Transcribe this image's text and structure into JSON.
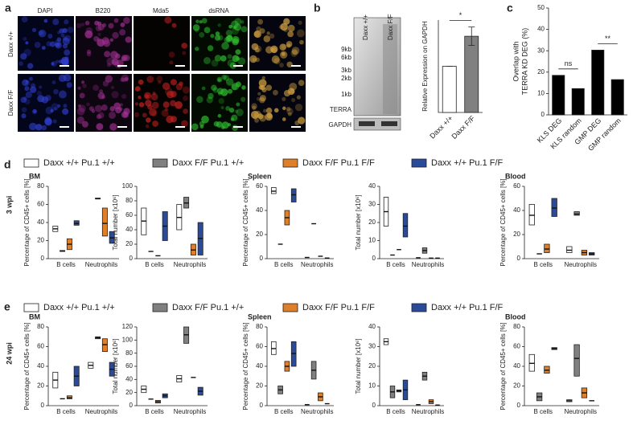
{
  "figure": {
    "panel_labels": [
      "a",
      "b",
      "c",
      "d",
      "e"
    ],
    "row_labels": [
      "3 wpi",
      "24 wpi"
    ]
  },
  "panel_a": {
    "columns": [
      "DAPI",
      "B220",
      "Mda5",
      "dsRNA"
    ],
    "rows": [
      "Daxx +/+",
      "Daxx F/F"
    ]
  },
  "blot": {
    "lanes": [
      "Daxx +/+",
      "Daxx F/F"
    ],
    "markers": [
      "9kb",
      "6kb",
      "3kb",
      "2kb",
      "1kb"
    ],
    "bands": [
      "TERRA",
      "GAPDH"
    ]
  },
  "chart_data": [
    {
      "type": "bar",
      "ylabel": "Relative Expression on GAPDH",
      "categories": [
        "Daxx +/+",
        "Daxx F/F"
      ],
      "values": [
        1.0,
        1.65
      ],
      "errors": [
        0.0,
        0.2
      ],
      "colors": [
        "#ffffff",
        "#808080"
      ],
      "ylim": [
        0,
        2
      ],
      "annotations": [
        {
          "label": "*",
          "categories": [
            "Daxx +/+",
            "Daxx F/F"
          ]
        }
      ]
    },
    {
      "type": "bar",
      "ylabel": [
        "Overlap with",
        "TERRA KD DEG (%)"
      ],
      "categories": [
        "KLS DEG",
        "KLS random",
        "GMP DEG",
        "GMP random"
      ],
      "values": [
        18.5,
        12.3,
        30.3,
        16.5
      ],
      "colors": [
        "#000000",
        "#000000",
        "#000000",
        "#000000"
      ],
      "ylim": [
        0,
        50
      ],
      "yticks": [
        0,
        10,
        20,
        30,
        40,
        50
      ],
      "annotations": [
        {
          "label": "ns",
          "categories": [
            "KLS DEG",
            "KLS random"
          ]
        },
        {
          "label": "**",
          "categories": [
            "GMP DEG",
            "GMP random"
          ]
        }
      ]
    },
    {
      "type": "floating_bar",
      "title": "BM",
      "ylabel": "Percentage of CD45+ cells [%]",
      "categories": [
        "B cells",
        "Neutrophils"
      ],
      "ylim": [
        0,
        80
      ],
      "yticks": [
        0,
        20,
        40,
        60,
        80
      ],
      "series": [
        {
          "name": "Daxx +/+ Pu.1 +/+",
          "color": "#ffffff",
          "min": [
            30,
            null
          ],
          "max": [
            36,
            null
          ],
          "mean": [
            33,
            null
          ]
        },
        {
          "name": "Daxx F/F Pu.1 +/+",
          "color": "#808080",
          "min": [
            8,
            66
          ],
          "max": [
            9,
            67
          ],
          "mean": [
            8.5,
            66.5
          ]
        },
        {
          "name": "Daxx F/F Pu.1 F/F",
          "color": "#e07f2a",
          "min": [
            10,
            25
          ],
          "max": [
            22,
            56
          ],
          "mean": [
            16,
            39
          ]
        },
        {
          "name": "Daxx +/+ Pu.1 F/F",
          "color": "#2a4a9a",
          "min": [
            37,
            17
          ],
          "max": [
            42,
            30
          ],
          "mean": [
            39,
            23
          ]
        }
      ]
    },
    {
      "type": "floating_bar",
      "ylabel": "Total number [x10⁶]",
      "categories": [
        "B cells",
        "Neutrophils"
      ],
      "ylim": [
        0,
        100
      ],
      "yticks": [
        0,
        20,
        40,
        60,
        80,
        100
      ],
      "series": [
        {
          "color": "#ffffff",
          "min": [
            33,
            40
          ],
          "max": [
            70,
            75
          ],
          "mean": [
            52,
            57
          ]
        },
        {
          "color": "#808080",
          "min": [
            10,
            70
          ],
          "max": [
            10,
            85
          ],
          "mean": [
            10,
            77
          ]
        },
        {
          "color": "#e07f2a",
          "min": [
            4,
            5
          ],
          "max": [
            4,
            20
          ],
          "mean": [
            4,
            12
          ]
        },
        {
          "color": "#2a4a9a",
          "min": [
            25,
            5
          ],
          "max": [
            65,
            50
          ],
          "mean": [
            45,
            28
          ]
        }
      ]
    },
    {
      "type": "floating_bar",
      "title": "Spleen",
      "ylabel": "Percentage of CD45+ cells [%]",
      "categories": [
        "B cells",
        "Neutrophils"
      ],
      "ylim": [
        0,
        60
      ],
      "yticks": [
        0,
        20,
        40,
        60
      ],
      "series": [
        {
          "color": "#ffffff",
          "min": [
            54,
            1
          ],
          "max": [
            59,
            1
          ],
          "mean": [
            56,
            1
          ]
        },
        {
          "color": "#808080",
          "min": [
            12,
            29
          ],
          "max": [
            12,
            29
          ],
          "mean": [
            12,
            29
          ]
        },
        {
          "color": "#e07f2a",
          "min": [
            28,
            2
          ],
          "max": [
            40,
            2
          ],
          "mean": [
            34,
            2
          ]
        },
        {
          "color": "#2a4a9a",
          "min": [
            47,
            0.5
          ],
          "max": [
            58,
            0.5
          ],
          "mean": [
            53,
            0.5
          ]
        }
      ]
    },
    {
      "type": "floating_bar",
      "ylabel": "Total number [x10⁶]",
      "categories": [
        "B cells",
        "Neutrophils"
      ],
      "ylim": [
        0,
        40
      ],
      "yticks": [
        0,
        10,
        20,
        30,
        40
      ],
      "series": [
        {
          "color": "#ffffff",
          "min": [
            18,
            0.5
          ],
          "max": [
            34,
            0.5
          ],
          "mean": [
            26,
            0.5
          ]
        },
        {
          "color": "#808080",
          "min": [
            2,
            3
          ],
          "max": [
            2,
            6
          ],
          "mean": [
            2,
            4.5
          ]
        },
        {
          "color": "#e07f2a",
          "min": [
            5,
            0.3
          ],
          "max": [
            5,
            0.3
          ],
          "mean": [
            5,
            0.3
          ]
        },
        {
          "color": "#2a4a9a",
          "min": [
            12,
            0.3
          ],
          "max": [
            25,
            0.3
          ],
          "mean": [
            18,
            0.3
          ]
        }
      ]
    },
    {
      "type": "floating_bar",
      "title": "Blood",
      "ylabel": "Percentage of CD45+ cells [%]",
      "categories": [
        "B cells",
        "Neutrophils"
      ],
      "ylim": [
        0,
        60
      ],
      "yticks": [
        0,
        20,
        40,
        60
      ],
      "series": [
        {
          "color": "#ffffff",
          "min": [
            28,
            5
          ],
          "max": [
            45,
            10
          ],
          "mean": [
            36,
            7
          ]
        },
        {
          "color": "#808080",
          "min": [
            4,
            36
          ],
          "max": [
            4,
            39
          ],
          "mean": [
            4,
            37
          ]
        },
        {
          "color": "#e07f2a",
          "min": [
            5,
            3
          ],
          "max": [
            12,
            7
          ],
          "mean": [
            8,
            5
          ]
        },
        {
          "color": "#2a4a9a",
          "min": [
            35,
            3
          ],
          "max": [
            50,
            5
          ],
          "mean": [
            42,
            4
          ]
        }
      ]
    },
    {
      "type": "floating_bar",
      "title": "BM",
      "ylabel": "Percentage of CD45+ cells [%]",
      "categories": [
        "B cells",
        "Neutrophils"
      ],
      "ylim": [
        0,
        80
      ],
      "yticks": [
        0,
        20,
        40,
        60,
        80
      ],
      "series": [
        {
          "name": "Daxx +/+ Pu.1 +/+",
          "color": "#ffffff",
          "min": [
            18,
            38
          ],
          "max": [
            34,
            44
          ],
          "mean": [
            26,
            41
          ]
        },
        {
          "name": "Daxx F/F Pu.1 +/+",
          "color": "#808080",
          "min": [
            7,
            68
          ],
          "max": [
            7,
            70
          ],
          "mean": [
            7,
            69
          ]
        },
        {
          "name": "Daxx F/F Pu.1 F/F",
          "color": "#e07f2a",
          "min": [
            7,
            55
          ],
          "max": [
            10,
            68
          ],
          "mean": [
            8,
            62
          ]
        },
        {
          "name": "Daxx +/+ Pu.1 F/F",
          "color": "#2a4a9a",
          "min": [
            20,
            30
          ],
          "max": [
            40,
            44
          ],
          "mean": [
            30,
            37
          ]
        }
      ]
    },
    {
      "type": "floating_bar",
      "ylabel": "Total number [x10⁶]",
      "categories": [
        "B cells",
        "Neutrophils"
      ],
      "ylim": [
        0,
        120
      ],
      "yticks": [
        0,
        20,
        40,
        60,
        80,
        100,
        120
      ],
      "series": [
        {
          "color": "#ffffff",
          "min": [
            20,
            36
          ],
          "max": [
            30,
            46
          ],
          "mean": [
            25,
            41
          ]
        },
        {
          "color": "#808080",
          "min": [
            10,
            95
          ],
          "max": [
            10,
            120
          ],
          "mean": [
            10,
            108
          ]
        },
        {
          "color": "#e07f2a",
          "min": [
            4,
            43
          ],
          "max": [
            8,
            43
          ],
          "mean": [
            6,
            43
          ]
        },
        {
          "color": "#2a4a9a",
          "min": [
            12,
            16
          ],
          "max": [
            18,
            28
          ],
          "mean": [
            15,
            22
          ]
        }
      ]
    },
    {
      "type": "floating_bar",
      "title": "Spleen",
      "ylabel": "Percentage of CD45+ cells [%]",
      "categories": [
        "B cells",
        "Neutrophils"
      ],
      "ylim": [
        0,
        80
      ],
      "yticks": [
        0,
        20,
        40,
        60,
        80
      ],
      "series": [
        {
          "color": "#ffffff",
          "min": [
            52,
            1
          ],
          "max": [
            65,
            1
          ],
          "mean": [
            58,
            1
          ]
        },
        {
          "color": "#808080",
          "min": [
            12,
            27
          ],
          "max": [
            20,
            45
          ],
          "mean": [
            16,
            36
          ]
        },
        {
          "color": "#e07f2a",
          "min": [
            35,
            5
          ],
          "max": [
            45,
            13
          ],
          "mean": [
            40,
            9
          ]
        },
        {
          "color": "#2a4a9a",
          "min": [
            40,
            2
          ],
          "max": [
            65,
            2
          ],
          "mean": [
            53,
            2
          ]
        }
      ]
    },
    {
      "type": "floating_bar",
      "ylabel": "Total number [x10⁶]",
      "categories": [
        "B cells",
        "Neutrophils"
      ],
      "ylim": [
        0,
        40
      ],
      "yticks": [
        0,
        10,
        20,
        30,
        40
      ],
      "series": [
        {
          "color": "#ffffff",
          "min": [
            31,
            0.5
          ],
          "max": [
            34,
            0.5
          ],
          "mean": [
            32.5,
            0.5
          ]
        },
        {
          "color": "#808080",
          "min": [
            4,
            13
          ],
          "max": [
            10,
            17
          ],
          "mean": [
            7,
            15
          ]
        },
        {
          "color": "#e07f2a",
          "min": [
            7,
            1
          ],
          "max": [
            8,
            3
          ],
          "mean": [
            7.5,
            2
          ]
        },
        {
          "color": "#2a4a9a",
          "min": [
            3,
            0.3
          ],
          "max": [
            13,
            0.3
          ],
          "mean": [
            8,
            0.3
          ]
        }
      ]
    },
    {
      "type": "floating_bar",
      "title": "Blood",
      "ylabel": "Percentage of CD45+ cells [%]",
      "categories": [
        "B cells",
        "Neutrophils"
      ],
      "ylim": [
        0,
        80
      ],
      "yticks": [
        0,
        20,
        40,
        60,
        80
      ],
      "series": [
        {
          "color": "#ffffff",
          "min": [
            35,
            4
          ],
          "max": [
            52,
            6
          ],
          "mean": [
            43,
            5
          ]
        },
        {
          "color": "#808080",
          "min": [
            5,
            30
          ],
          "max": [
            13,
            62
          ],
          "mean": [
            9,
            48
          ]
        },
        {
          "color": "#e07f2a",
          "min": [
            33,
            8
          ],
          "max": [
            40,
            18
          ],
          "mean": [
            36,
            13
          ]
        },
        {
          "color": "#2a4a9a",
          "min": [
            57,
            5
          ],
          "max": [
            59,
            5
          ],
          "mean": [
            58,
            5
          ]
        }
      ]
    }
  ]
}
